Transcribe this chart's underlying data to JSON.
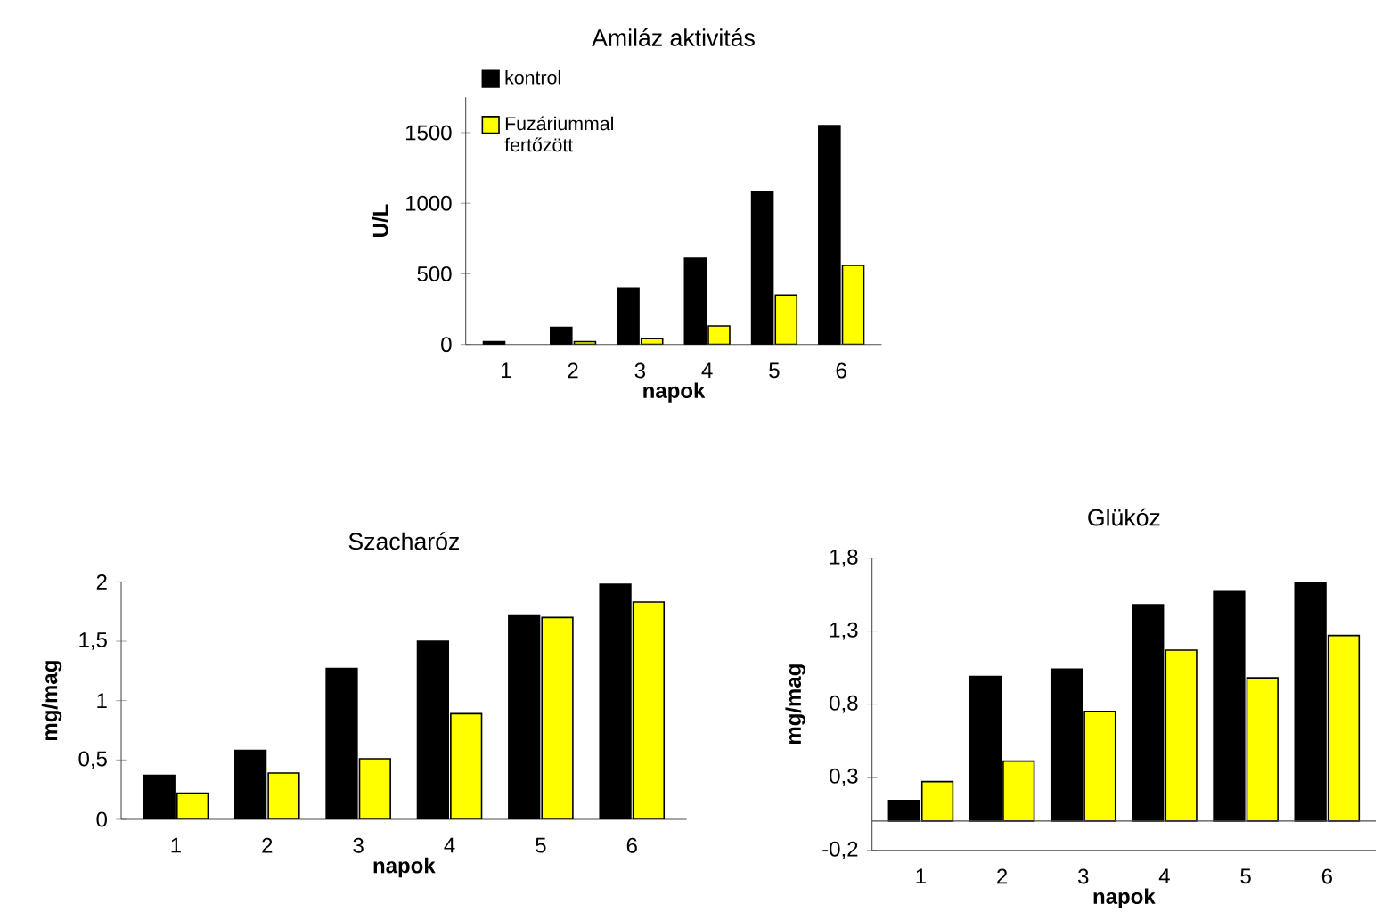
{
  "chart_data": [
    {
      "type": "bar",
      "title": "Amiláz aktivitás",
      "xlabel": "napok",
      "ylabel": "U/L",
      "categories": [
        "1",
        "2",
        "3",
        "4",
        "5",
        "6"
      ],
      "series": [
        {
          "name": "kontrol",
          "color": "#000000",
          "values": [
            20,
            120,
            400,
            610,
            1080,
            1550
          ]
        },
        {
          "name": "Fuzáriummal fertőzött",
          "color": "#ffff00",
          "values": [
            null,
            20,
            40,
            130,
            350,
            560
          ]
        }
      ],
      "ylim": [
        0,
        1750
      ],
      "yticks": [
        0,
        500,
        1000,
        1500
      ],
      "legend": "top left",
      "grid": false
    },
    {
      "type": "bar",
      "title": "Szacharóz",
      "xlabel": "napok",
      "ylabel": "mg/mag",
      "categories": [
        "1",
        "2",
        "3",
        "4",
        "5",
        "6"
      ],
      "series": [
        {
          "color": "#000000",
          "values": [
            0.37,
            0.58,
            1.27,
            1.5,
            1.72,
            1.98
          ]
        },
        {
          "color": "#ffff00",
          "values": [
            0.22,
            0.39,
            0.51,
            0.89,
            1.7,
            1.83
          ]
        }
      ],
      "ylim": [
        0,
        2
      ],
      "yticks": [
        0,
        {
          "value": 0.5,
          "label": "0,5"
        },
        1,
        {
          "value": 1.5,
          "label": "1,5"
        },
        2
      ],
      "grid": false
    },
    {
      "type": "bar",
      "title": "Glükóz",
      "xlabel": "napok",
      "ylabel": "mg/mag",
      "categories": [
        "1",
        "2",
        "3",
        "4",
        "5",
        "6"
      ],
      "series": [
        {
          "color": "#000000",
          "values": [
            0.14,
            0.99,
            1.04,
            1.48,
            1.57,
            1.63
          ]
        },
        {
          "color": "#ffff00",
          "values": [
            0.27,
            0.41,
            0.75,
            1.17,
            0.98,
            1.27
          ]
        }
      ],
      "ylim": [
        -0.2,
        1.8
      ],
      "yticks": [
        {
          "value": -0.2,
          "label": "-0,2"
        },
        {
          "value": 0.3,
          "label": "0,3"
        },
        {
          "value": 0.8,
          "label": "0,8"
        },
        {
          "value": 1.3,
          "label": "1,3"
        },
        {
          "value": 1.8,
          "label": "1,8"
        }
      ],
      "grid": false
    }
  ]
}
